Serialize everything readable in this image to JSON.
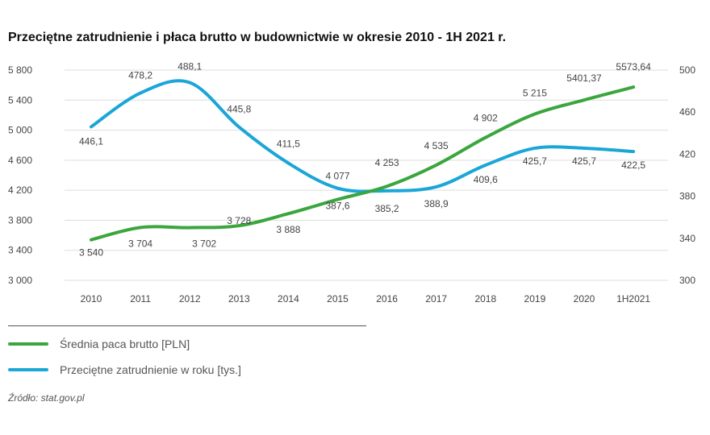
{
  "title": "Przeciętne zatrudnienie i płaca brutto w budownictwie w okresie 2010 - 1H 2021 r.",
  "source": "Źródło: stat.gov.pl",
  "colors": {
    "wage": "#3aa63d",
    "employment": "#1ba6d8",
    "grid": "#dddddd",
    "text": "#444444"
  },
  "chart_data": {
    "type": "line",
    "x": [
      "2010",
      "2011",
      "2012",
      "2013",
      "2014",
      "2015",
      "2016",
      "2017",
      "2018",
      "2019",
      "2020",
      "1H2021"
    ],
    "y_left": {
      "ylim": [
        3000,
        5800
      ],
      "ticks": [
        3000,
        3400,
        3800,
        4200,
        4600,
        5000,
        5400,
        5800
      ],
      "tick_labels": [
        "3 000",
        "3 400",
        "3 800",
        "4 200",
        "4 600",
        "5 000",
        "5 400",
        "5 800"
      ]
    },
    "y_right": {
      "ylim": [
        300,
        500
      ],
      "ticks": [
        300,
        340,
        380,
        420,
        460,
        500
      ],
      "tick_labels": [
        "300",
        "340",
        "380",
        "420",
        "460",
        "500"
      ]
    },
    "grid": true,
    "legend_position": "bottom-left",
    "series": [
      {
        "name": "Średnia paca brutto [PLN]",
        "axis": "left",
        "values": [
          3540,
          3704,
          3702,
          3728,
          3888,
          4077,
          4253,
          4535,
          4902,
          5215,
          5401.37,
          5573.64
        ],
        "labels": [
          "3 540",
          "3 704",
          "3 702",
          "3 728",
          "3 888",
          "4 077",
          "4 253",
          "4 535",
          "4 902",
          "5 215",
          "5401,37",
          "5573,64"
        ]
      },
      {
        "name": "Przeciętne zatrudnienie w roku [tys.]",
        "axis": "right",
        "values": [
          446.1,
          478.2,
          488.1,
          445.8,
          411.5,
          387.6,
          385.2,
          388.9,
          409.6,
          425.7,
          425.7,
          422.5
        ],
        "labels": [
          "446,1",
          "478,2",
          "488,1",
          "445,8",
          "411,5",
          "387,6",
          "385,2",
          "388,9",
          "409,6",
          "425,7",
          "425,7",
          "422,5"
        ]
      }
    ]
  }
}
